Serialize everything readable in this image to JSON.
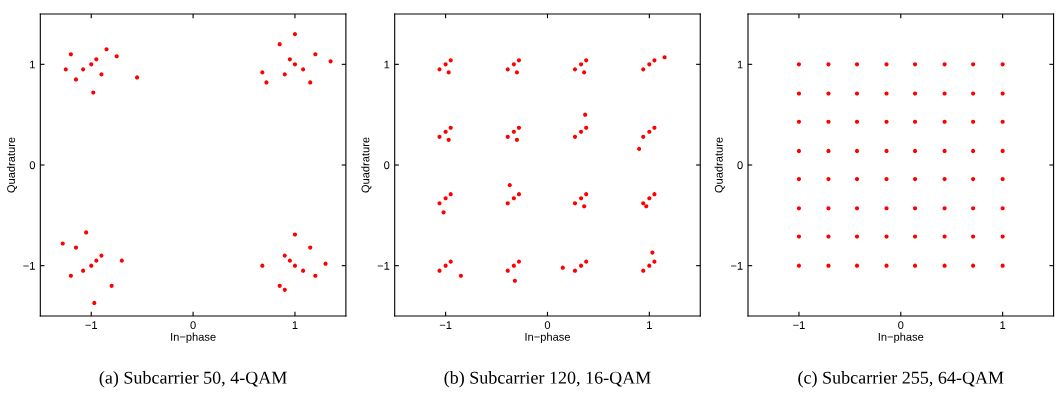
{
  "chart_data": [
    {
      "type": "scatter",
      "title": "(a) Subcarrier 50, 4-QAM",
      "xlabel": "In−phase",
      "ylabel": "Quadrature",
      "xlim": [
        -1.5,
        1.5
      ],
      "ylim": [
        -1.5,
        1.5
      ],
      "xticks": [
        -1,
        0,
        1
      ],
      "yticks": [
        -1,
        0,
        1
      ],
      "marker": "circle",
      "series": [
        {
          "color": "#ff0000",
          "x": [
            -1,
            -0.95,
            -1.08,
            -0.9,
            -1.2,
            -0.85,
            -1.15,
            -0.98,
            -0.75,
            -0.55,
            -1.25,
            1,
            0.95,
            1.08,
            0.9,
            1.2,
            0.85,
            1.15,
            0.72,
            1.35,
            1,
            0.68,
            -1,
            -0.95,
            -1.08,
            -0.9,
            -1.2,
            -0.8,
            -1.15,
            -1.05,
            -0.97,
            -0.7,
            -1.28,
            1,
            0.95,
            1.08,
            0.9,
            1.2,
            0.85,
            1.15,
            1,
            0.9,
            1.3,
            0.68
          ],
          "values": [
            1,
            1.05,
            0.95,
            0.9,
            1.1,
            1.15,
            0.85,
            0.72,
            1.08,
            0.87,
            0.95,
            1,
            1.05,
            0.95,
            0.9,
            1.1,
            1.2,
            0.82,
            0.82,
            1.03,
            1.3,
            0.92,
            -1,
            -0.95,
            -1.05,
            -0.9,
            -1.1,
            -1.2,
            -0.82,
            -0.67,
            -1.37,
            -0.95,
            -0.78,
            -1,
            -0.95,
            -1.05,
            -0.9,
            -1.1,
            -1.2,
            -0.82,
            -0.69,
            -1.24,
            -0.98,
            -1
          ]
        }
      ]
    },
    {
      "type": "scatter",
      "title": "(b) Subcarrier 120, 16-QAM",
      "xlabel": "In−phase",
      "ylabel": "Quadrature",
      "xlim": [
        -1.5,
        1.5
      ],
      "ylim": [
        -1.5,
        1.5
      ],
      "xticks": [
        -1,
        0,
        1
      ],
      "yticks": [
        -1,
        0,
        1
      ],
      "marker": "circle",
      "series": [
        {
          "color": "#ff0000",
          "x": [
            -1,
            -0.95,
            -1.06,
            -0.97,
            -0.33,
            -0.28,
            -0.39,
            -0.3,
            0.33,
            0.38,
            0.27,
            0.36,
            1,
            1.05,
            0.94,
            1.15,
            -1,
            -0.95,
            -1.06,
            -0.97,
            -0.33,
            -0.28,
            -0.39,
            -0.3,
            0.33,
            0.38,
            0.27,
            0.37,
            1,
            1.05,
            0.94,
            0.9,
            -1,
            -0.95,
            -1.06,
            -1.02,
            -0.33,
            -0.28,
            -0.39,
            -0.37,
            0.33,
            0.38,
            0.27,
            0.36,
            1,
            1.05,
            0.94,
            0.97,
            -1,
            -0.95,
            -1.06,
            -0.85,
            -0.33,
            -0.28,
            -0.39,
            -0.32,
            0.33,
            0.38,
            0.27,
            0.15,
            1,
            1.05,
            0.94,
            1.03
          ],
          "values": [
            1,
            1.04,
            0.95,
            0.92,
            1,
            1.04,
            0.95,
            0.92,
            1,
            1.04,
            0.95,
            0.92,
            1,
            1.04,
            0.95,
            1.07,
            0.33,
            0.37,
            0.28,
            0.25,
            0.33,
            0.37,
            0.28,
            0.25,
            0.33,
            0.37,
            0.28,
            0.5,
            0.33,
            0.37,
            0.28,
            0.16,
            -0.33,
            -0.29,
            -0.38,
            -0.47,
            -0.33,
            -0.29,
            -0.38,
            -0.2,
            -0.33,
            -0.29,
            -0.38,
            -0.41,
            -0.33,
            -0.29,
            -0.38,
            -0.41,
            -1,
            -0.96,
            -1.05,
            -1.1,
            -1,
            -0.96,
            -1.05,
            -1.15,
            -1,
            -0.96,
            -1.05,
            -1.02,
            -1,
            -0.96,
            -1.05,
            -0.87
          ]
        }
      ]
    },
    {
      "type": "scatter",
      "title": "(c) Subcarrier 255, 64-QAM",
      "xlabel": "In−phase",
      "ylabel": "Quadrature",
      "xlim": [
        -1.5,
        1.5
      ],
      "ylim": [
        -1.5,
        1.5
      ],
      "xticks": [
        -1,
        0,
        1
      ],
      "yticks": [
        -1,
        0,
        1
      ],
      "marker": "circle",
      "series": [
        {
          "color": "#ff0000",
          "x": [
            -1,
            -0.71,
            -0.43,
            -0.14,
            0.14,
            0.43,
            0.71,
            1,
            -1,
            -0.71,
            -0.43,
            -0.14,
            0.14,
            0.43,
            0.71,
            1,
            -1,
            -0.71,
            -0.43,
            -0.14,
            0.14,
            0.43,
            0.71,
            1,
            -1,
            -0.71,
            -0.43,
            -0.14,
            0.14,
            0.43,
            0.71,
            1,
            -1,
            -0.71,
            -0.43,
            -0.14,
            0.14,
            0.43,
            0.71,
            1,
            -1,
            -0.71,
            -0.43,
            -0.14,
            0.14,
            0.43,
            0.71,
            1,
            -1,
            -0.71,
            -0.43,
            -0.14,
            0.14,
            0.43,
            0.71,
            1,
            -1,
            -0.71,
            -0.43,
            -0.14,
            0.14,
            0.43,
            0.71,
            1
          ],
          "values": [
            1,
            1,
            1,
            1,
            1,
            1,
            1,
            1,
            0.71,
            0.71,
            0.71,
            0.71,
            0.71,
            0.71,
            0.71,
            0.71,
            0.43,
            0.43,
            0.43,
            0.43,
            0.43,
            0.43,
            0.43,
            0.43,
            0.14,
            0.14,
            0.14,
            0.14,
            0.14,
            0.14,
            0.14,
            0.14,
            -0.14,
            -0.14,
            -0.14,
            -0.14,
            -0.14,
            -0.14,
            -0.14,
            -0.14,
            -0.43,
            -0.43,
            -0.43,
            -0.43,
            -0.43,
            -0.43,
            -0.43,
            -0.43,
            -0.71,
            -0.71,
            -0.71,
            -0.71,
            -0.71,
            -0.71,
            -0.71,
            -0.71,
            -1,
            -1,
            -1,
            -1,
            -1,
            -1,
            -1,
            -1
          ]
        }
      ]
    }
  ]
}
